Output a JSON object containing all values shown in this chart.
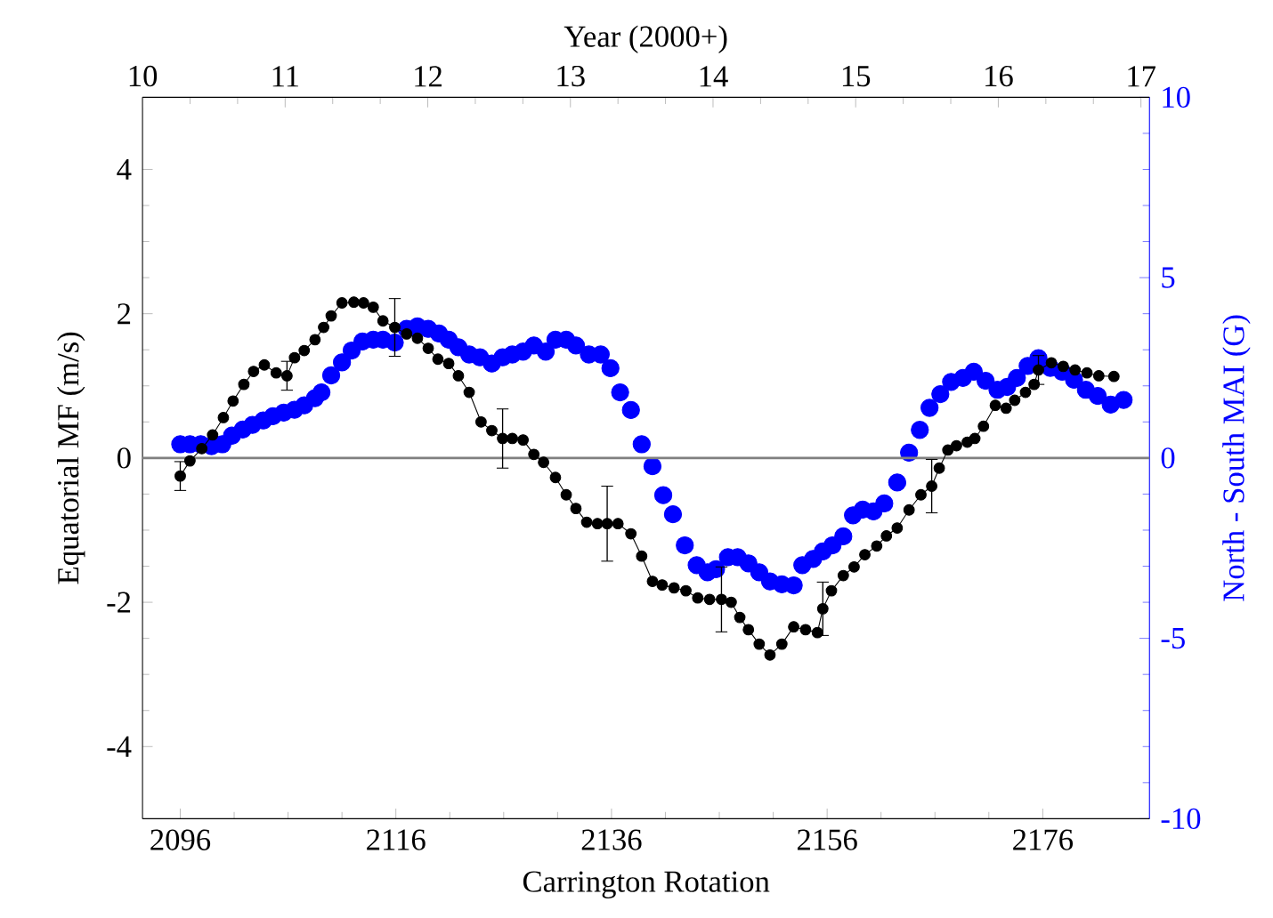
{
  "chart_data": {
    "type": "line",
    "xlabel": "Carrington Rotation",
    "ylabel": "Equatorial MF (m/s)",
    "y2label": "North - South MAI (G)",
    "x2label": "Year (2000+)",
    "xlim": [
      2092.5,
      2185.9
    ],
    "xticks": [
      2096,
      2116,
      2136,
      2156,
      2176
    ],
    "ylim": [
      -5,
      5
    ],
    "yticks": [
      -4,
      -2,
      0,
      2,
      4
    ],
    "y2lim": [
      -10,
      10
    ],
    "y2ticks": [
      -10,
      -5,
      0,
      5,
      10
    ],
    "x2lim": [
      10,
      17.06
    ],
    "x2ticks": [
      10,
      11,
      12,
      13,
      14,
      15,
      16,
      17
    ],
    "ref_lines": [
      {
        "axis": "y",
        "value": 0,
        "color": "#808080"
      }
    ],
    "series": [
      {
        "type": "scatter",
        "axis": "y2",
        "color": "#0000ff",
        "marker": "circle",
        "x": [
          2096.0,
          2096.9,
          2097.9,
          2098.9,
          2099.9,
          2100.8,
          2101.8,
          2102.7,
          2103.7,
          2104.6,
          2105.6,
          2106.6,
          2107.5,
          2108.5,
          2109.1,
          2110.0,
          2111.0,
          2111.9,
          2112.9,
          2113.9,
          2114.8,
          2115.9,
          2117.0,
          2118.0,
          2119.0,
          2120.0,
          2120.9,
          2121.8,
          2122.8,
          2123.8,
          2124.9,
          2125.9,
          2126.8,
          2127.8,
          2128.8,
          2129.9,
          2130.8,
          2131.8,
          2132.7,
          2133.9,
          2135.0,
          2135.9,
          2136.8,
          2137.8,
          2138.8,
          2139.8,
          2140.8,
          2141.7,
          2142.8,
          2143.9,
          2144.9,
          2145.7,
          2146.8,
          2147.7,
          2148.7,
          2149.7,
          2150.7,
          2151.8,
          2152.9,
          2153.7,
          2154.7,
          2155.6,
          2156.5,
          2157.5,
          2158.4,
          2159.3,
          2160.3,
          2161.3,
          2162.5,
          2163.6,
          2164.6,
          2165.5,
          2166.5,
          2167.5,
          2168.6,
          2169.6,
          2170.7,
          2171.8,
          2172.7,
          2173.6,
          2174.6,
          2175.6,
          2176.7,
          2177.8,
          2178.9,
          2180.0,
          2181.1,
          2182.3,
          2183.5
        ],
        "values": [
          0.38,
          0.38,
          0.38,
          0.33,
          0.38,
          0.62,
          0.79,
          0.92,
          1.04,
          1.16,
          1.26,
          1.34,
          1.46,
          1.66,
          1.82,
          2.29,
          2.65,
          2.98,
          3.23,
          3.28,
          3.28,
          3.2,
          3.58,
          3.65,
          3.58,
          3.45,
          3.28,
          3.07,
          2.87,
          2.79,
          2.62,
          2.79,
          2.87,
          2.95,
          3.12,
          2.95,
          3.28,
          3.28,
          3.12,
          2.87,
          2.87,
          2.49,
          1.82,
          1.33,
          0.38,
          -0.23,
          -1.03,
          -1.56,
          -2.42,
          -2.97,
          -3.17,
          -3.08,
          -2.75,
          -2.75,
          -2.92,
          -3.17,
          -3.42,
          -3.5,
          -3.53,
          -2.97,
          -2.8,
          -2.59,
          -2.42,
          -2.17,
          -1.59,
          -1.43,
          -1.48,
          -1.26,
          -0.68,
          0.15,
          0.78,
          1.39,
          1.77,
          2.11,
          2.22,
          2.39,
          2.14,
          1.89,
          1.97,
          2.22,
          2.55,
          2.77,
          2.5,
          2.39,
          2.17,
          1.89,
          1.72,
          1.48,
          1.61
        ]
      },
      {
        "color": "#000000",
        "marker": "circle",
        "line_style": "solid",
        "x": [
          2096.0,
          2096.9,
          2098.0,
          2099.0,
          2100.0,
          2100.9,
          2101.9,
          2102.8,
          2103.8,
          2104.9,
          2105.9,
          2106.6,
          2107.5,
          2108.5,
          2109.3,
          2110.0,
          2111.0,
          2112.1,
          2113.0,
          2113.9,
          2114.8,
          2115.9,
          2117.0,
          2118.0,
          2119.0,
          2119.9,
          2120.9,
          2121.8,
          2122.8,
          2123.9,
          2124.9,
          2125.9,
          2126.8,
          2127.8,
          2128.8,
          2129.7,
          2130.8,
          2131.8,
          2132.7,
          2133.7,
          2134.7,
          2135.6,
          2136.6,
          2137.8,
          2138.8,
          2139.8,
          2140.7,
          2141.8,
          2142.9,
          2144.0,
          2145.1,
          2146.2,
          2147.1,
          2147.9,
          2148.7,
          2149.7,
          2150.7,
          2151.8,
          2152.9,
          2154.0,
          2155.1,
          2155.6,
          2156.4,
          2157.5,
          2158.5,
          2159.5,
          2160.6,
          2161.5,
          2162.5,
          2163.6,
          2164.7,
          2165.7,
          2166.4,
          2167.2,
          2168.0,
          2169.0,
          2169.7,
          2170.5,
          2171.6,
          2172.6,
          2173.4,
          2174.4,
          2175.2,
          2175.6,
          2176.8,
          2177.9,
          2179.0,
          2180.1,
          2181.2,
          2182.6
        ],
        "values": [
          -0.25,
          -0.04,
          0.13,
          0.32,
          0.56,
          0.79,
          1.02,
          1.2,
          1.29,
          1.18,
          1.14,
          1.39,
          1.49,
          1.64,
          1.81,
          1.97,
          2.15,
          2.16,
          2.15,
          2.09,
          1.9,
          1.81,
          1.72,
          1.66,
          1.52,
          1.37,
          1.31,
          1.14,
          0.91,
          0.5,
          0.38,
          0.27,
          0.27,
          0.25,
          0.05,
          -0.06,
          -0.27,
          -0.51,
          -0.7,
          -0.89,
          -0.91,
          -0.91,
          -0.91,
          -1.05,
          -1.36,
          -1.71,
          -1.76,
          -1.8,
          -1.84,
          -1.94,
          -1.96,
          -1.96,
          -2.0,
          -2.21,
          -2.38,
          -2.58,
          -2.73,
          -2.58,
          -2.34,
          -2.38,
          -2.42,
          -2.09,
          -1.84,
          -1.63,
          -1.51,
          -1.34,
          -1.22,
          -1.08,
          -0.97,
          -0.72,
          -0.51,
          -0.39,
          -0.14,
          0.11,
          0.17,
          0.22,
          0.27,
          0.44,
          0.73,
          0.69,
          0.8,
          0.91,
          1.02,
          1.22,
          1.32,
          1.27,
          1.22,
          1.18,
          1.14,
          1.13
        ],
        "errors": [
          0.2,
          null,
          null,
          null,
          null,
          null,
          null,
          null,
          null,
          null,
          0.2,
          null,
          null,
          null,
          null,
          null,
          null,
          null,
          null,
          null,
          null,
          0.4,
          null,
          null,
          null,
          null,
          null,
          null,
          null,
          null,
          null,
          0.41,
          null,
          null,
          null,
          null,
          null,
          null,
          null,
          null,
          null,
          0.52,
          null,
          null,
          null,
          null,
          null,
          null,
          null,
          null,
          null,
          0.45,
          null,
          null,
          null,
          null,
          null,
          null,
          null,
          null,
          null,
          0.37,
          null,
          null,
          null,
          null,
          null,
          null,
          null,
          null,
          null,
          0.37,
          null,
          null,
          null,
          null,
          null,
          null,
          null,
          null,
          null,
          null,
          null,
          0.2,
          null,
          null,
          null,
          null,
          null,
          null
        ]
      }
    ]
  }
}
